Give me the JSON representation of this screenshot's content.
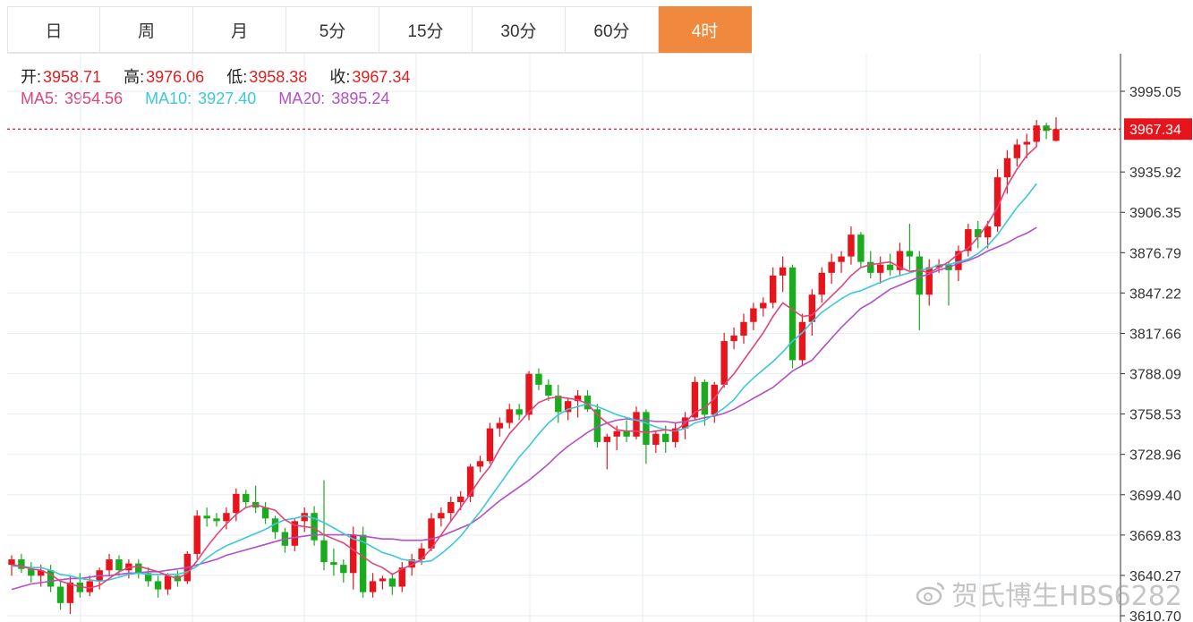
{
  "tabs": [
    {
      "label": "日",
      "active": false
    },
    {
      "label": "周",
      "active": false
    },
    {
      "label": "月",
      "active": false
    },
    {
      "label": "5分",
      "active": false
    },
    {
      "label": "15分",
      "active": false
    },
    {
      "label": "30分",
      "active": false
    },
    {
      "label": "60分",
      "active": false
    },
    {
      "label": "4时",
      "active": true
    }
  ],
  "ohlc": {
    "open_label": "开:",
    "open": "3958.71",
    "high_label": "高:",
    "high": "3976.06",
    "low_label": "低:",
    "low": "3958.38",
    "close_label": "收:",
    "close": "3967.34"
  },
  "ma": {
    "ma5_label": "MA5:",
    "ma5": "3954.56",
    "ma10_label": "MA10:",
    "ma10": "3927.40",
    "ma20_label": "MA20:",
    "ma20": "3895.24"
  },
  "watermark": "贺氏博生HBS6282",
  "colors": {
    "up": "#e8141c",
    "down": "#1aab1f",
    "ma5": "#e0457a",
    "ma10": "#3cc8d8",
    "ma20": "#b44ec9",
    "active_tab": "#f0883e",
    "grid": "#e6eef3"
  },
  "chart_data": {
    "type": "candlestick",
    "y_ticks": [
      "3995.05",
      "3935.92",
      "3906.35",
      "3876.79",
      "3847.22",
      "3817.66",
      "3788.09",
      "3758.53",
      "3728.96",
      "3699.40",
      "3669.83",
      "3640.27",
      "3610.70"
    ],
    "ylim": [
      3610.7,
      4009.83
    ],
    "last_price_label": "3967.34",
    "candles": [
      [
        3648,
        3655,
        3640,
        3652
      ],
      [
        3652,
        3656,
        3642,
        3645
      ],
      [
        3645,
        3650,
        3635,
        3640
      ],
      [
        3640,
        3648,
        3632,
        3644
      ],
      [
        3644,
        3648,
        3628,
        3632
      ],
      [
        3632,
        3636,
        3615,
        3620
      ],
      [
        3620,
        3640,
        3612,
        3635
      ],
      [
        3635,
        3642,
        3624,
        3628
      ],
      [
        3628,
        3640,
        3625,
        3636
      ],
      [
        3636,
        3646,
        3630,
        3644
      ],
      [
        3644,
        3656,
        3640,
        3652
      ],
      [
        3652,
        3655,
        3640,
        3644
      ],
      [
        3644,
        3652,
        3638,
        3649
      ],
      [
        3649,
        3652,
        3638,
        3642
      ],
      [
        3642,
        3646,
        3632,
        3636
      ],
      [
        3636,
        3640,
        3624,
        3630
      ],
      [
        3630,
        3642,
        3626,
        3640
      ],
      [
        3640,
        3644,
        3632,
        3636
      ],
      [
        3636,
        3658,
        3634,
        3656
      ],
      [
        3656,
        3688,
        3652,
        3684
      ],
      [
        3684,
        3690,
        3676,
        3682
      ],
      [
        3682,
        3686,
        3676,
        3680
      ],
      [
        3680,
        3690,
        3674,
        3686
      ],
      [
        3686,
        3704,
        3680,
        3700
      ],
      [
        3700,
        3703,
        3690,
        3694
      ],
      [
        3694,
        3706,
        3686,
        3690
      ],
      [
        3690,
        3694,
        3678,
        3682
      ],
      [
        3682,
        3684,
        3667,
        3672
      ],
      [
        3672,
        3675,
        3657,
        3662
      ],
      [
        3662,
        3682,
        3658,
        3680
      ],
      [
        3680,
        3690,
        3672,
        3686
      ],
      [
        3686,
        3691,
        3662,
        3666
      ],
      [
        3666,
        3710,
        3644,
        3650
      ],
      [
        3650,
        3660,
        3640,
        3648
      ],
      [
        3648,
        3652,
        3635,
        3642
      ],
      [
        3642,
        3676,
        3630,
        3670
      ],
      [
        3670,
        3676,
        3624,
        3628
      ],
      [
        3628,
        3642,
        3624,
        3636
      ],
      [
        3636,
        3640,
        3630,
        3638
      ],
      [
        3638,
        3642,
        3626,
        3632
      ],
      [
        3632,
        3650,
        3628,
        3646
      ],
      [
        3646,
        3656,
        3640,
        3652
      ],
      [
        3652,
        3664,
        3648,
        3660
      ],
      [
        3660,
        3686,
        3658,
        3682
      ],
      [
        3682,
        3690,
        3676,
        3686
      ],
      [
        3686,
        3698,
        3680,
        3694
      ],
      [
        3694,
        3702,
        3688,
        3698
      ],
      [
        3698,
        3722,
        3694,
        3720
      ],
      [
        3720,
        3728,
        3716,
        3724
      ],
      [
        3724,
        3752,
        3722,
        3748
      ],
      [
        3748,
        3756,
        3742,
        3752
      ],
      [
        3752,
        3766,
        3748,
        3762
      ],
      [
        3762,
        3766,
        3754,
        3758
      ],
      [
        3758,
        3790,
        3754,
        3788
      ],
      [
        3788,
        3792,
        3776,
        3780
      ],
      [
        3780,
        3784,
        3768,
        3772
      ],
      [
        3772,
        3780,
        3752,
        3760
      ],
      [
        3760,
        3770,
        3754,
        3768
      ],
      [
        3768,
        3776,
        3756,
        3772
      ],
      [
        3772,
        3776,
        3760,
        3762
      ],
      [
        3762,
        3766,
        3734,
        3738
      ],
      [
        3738,
        3744,
        3718,
        3742
      ],
      [
        3742,
        3750,
        3732,
        3746
      ],
      [
        3746,
        3754,
        3738,
        3742
      ],
      [
        3742,
        3764,
        3740,
        3760
      ],
      [
        3760,
        3762,
        3722,
        3736
      ],
      [
        3736,
        3746,
        3730,
        3744
      ],
      [
        3744,
        3750,
        3730,
        3738
      ],
      [
        3738,
        3752,
        3734,
        3748
      ],
      [
        3748,
        3760,
        3740,
        3756
      ],
      [
        3756,
        3786,
        3754,
        3782
      ],
      [
        3782,
        3784,
        3750,
        3758
      ],
      [
        3758,
        3782,
        3752,
        3780
      ],
      [
        3780,
        3818,
        3778,
        3812
      ],
      [
        3812,
        3822,
        3806,
        3816
      ],
      [
        3816,
        3832,
        3810,
        3826
      ],
      [
        3826,
        3840,
        3820,
        3836
      ],
      [
        3836,
        3844,
        3830,
        3840
      ],
      [
        3840,
        3866,
        3836,
        3860
      ],
      [
        3860,
        3874,
        3848,
        3866
      ],
      [
        3866,
        3868,
        3792,
        3798
      ],
      [
        3798,
        3832,
        3794,
        3826
      ],
      [
        3826,
        3850,
        3816,
        3846
      ],
      [
        3846,
        3866,
        3840,
        3862
      ],
      [
        3862,
        3876,
        3854,
        3870
      ],
      [
        3870,
        3878,
        3862,
        3874
      ],
      [
        3874,
        3896,
        3868,
        3890
      ],
      [
        3890,
        3892,
        3866,
        3870
      ],
      [
        3870,
        3878,
        3858,
        3862
      ],
      [
        3862,
        3874,
        3854,
        3868
      ],
      [
        3868,
        3876,
        3860,
        3864
      ],
      [
        3864,
        3884,
        3860,
        3878
      ],
      [
        3878,
        3898,
        3864,
        3874
      ],
      [
        3874,
        3878,
        3820,
        3846
      ],
      [
        3846,
        3872,
        3838,
        3866
      ],
      [
        3866,
        3872,
        3862,
        3868
      ],
      [
        3868,
        3870,
        3838,
        3864
      ],
      [
        3864,
        3882,
        3856,
        3878
      ],
      [
        3878,
        3898,
        3874,
        3894
      ],
      [
        3894,
        3900,
        3880,
        3888
      ],
      [
        3888,
        3900,
        3880,
        3896
      ],
      [
        3896,
        3938,
        3892,
        3932
      ],
      [
        3932,
        3952,
        3920,
        3946
      ],
      [
        3946,
        3960,
        3940,
        3956
      ],
      [
        3956,
        3964,
        3946,
        3958
      ],
      [
        3958,
        3974,
        3954,
        3970
      ],
      [
        3970,
        3972,
        3960,
        3966
      ],
      [
        3958.71,
        3976.06,
        3958.38,
        3967.34
      ]
    ],
    "ma5": [
      3648,
      3647,
      3645,
      3644,
      3641,
      3636,
      3634,
      3632,
      3631,
      3633,
      3638,
      3643,
      3646,
      3647,
      3645,
      3643,
      3640,
      3638,
      3642,
      3651,
      3661,
      3670,
      3678,
      3685,
      3690,
      3692,
      3690,
      3688,
      3681,
      3677,
      3676,
      3675,
      3670,
      3667,
      3664,
      3659,
      3654,
      3649,
      3646,
      3641,
      3645,
      3648,
      3652,
      3660,
      3670,
      3680,
      3690,
      3700,
      3711,
      3720,
      3733,
      3744,
      3752,
      3760,
      3767,
      3770,
      3771,
      3770,
      3769,
      3766,
      3758,
      3752,
      3747,
      3746,
      3746,
      3745,
      3746,
      3747,
      3746,
      3752,
      3760,
      3763,
      3770,
      3780,
      3788,
      3798,
      3808,
      3818,
      3830,
      3840,
      3835,
      3830,
      3831,
      3838,
      3845,
      3852,
      3860,
      3866,
      3868,
      3869,
      3870,
      3866,
      3863,
      3864,
      3862,
      3866,
      3870,
      3876,
      3880,
      3888,
      3898,
      3910,
      3926,
      3938,
      3948,
      3954.56
    ],
    "ma10": [
      3647,
      3647,
      3646,
      3646,
      3644,
      3641,
      3640,
      3638,
      3637,
      3636,
      3637,
      3639,
      3641,
      3642,
      3641,
      3641,
      3641,
      3641,
      3643,
      3647,
      3653,
      3658,
      3662,
      3665,
      3668,
      3671,
      3674,
      3678,
      3681,
      3682,
      3684,
      3682,
      3679,
      3675,
      3671,
      3667,
      3665,
      3661,
      3657,
      3655,
      3652,
      3651,
      3650,
      3651,
      3656,
      3662,
      3669,
      3678,
      3687,
      3697,
      3707,
      3717,
      3727,
      3735,
      3744,
      3752,
      3758,
      3762,
      3764,
      3766,
      3764,
      3761,
      3758,
      3756,
      3754,
      3752,
      3749,
      3747,
      3746,
      3748,
      3752,
      3754,
      3758,
      3763,
      3769,
      3778,
      3785,
      3791,
      3797,
      3804,
      3812,
      3818,
      3826,
      3833,
      3838,
      3843,
      3847,
      3849,
      3852,
      3855,
      3858,
      3860,
      3862,
      3864,
      3865,
      3868,
      3868,
      3870,
      3872,
      3876,
      3882,
      3890,
      3900,
      3910,
      3918,
      3927.4
    ],
    "ma20": [
      3630,
      3632,
      3634,
      3635,
      3636,
      3637,
      3638,
      3638,
      3639,
      3640,
      3640,
      3641,
      3642,
      3642,
      3643,
      3643,
      3644,
      3645,
      3646,
      3648,
      3650,
      3652,
      3655,
      3657,
      3659,
      3661,
      3663,
      3665,
      3667,
      3668,
      3669,
      3670,
      3670,
      3670,
      3670,
      3670,
      3669,
      3668,
      3667,
      3667,
      3666,
      3666,
      3666,
      3667,
      3669,
      3672,
      3675,
      3678,
      3683,
      3689,
      3695,
      3700,
      3705,
      3710,
      3716,
      3722,
      3729,
      3735,
      3740,
      3745,
      3749,
      3752,
      3754,
      3755,
      3754,
      3754,
      3753,
      3753,
      3752,
      3753,
      3754,
      3756,
      3757,
      3759,
      3762,
      3766,
      3770,
      3774,
      3778,
      3784,
      3790,
      3794,
      3798,
      3806,
      3814,
      3822,
      3829,
      3836,
      3840,
      3845,
      3850,
      3853,
      3856,
      3859,
      3861,
      3864,
      3866,
      3869,
      3871,
      3874,
      3878,
      3881,
      3884,
      3888,
      3891,
      3895.24
    ]
  }
}
